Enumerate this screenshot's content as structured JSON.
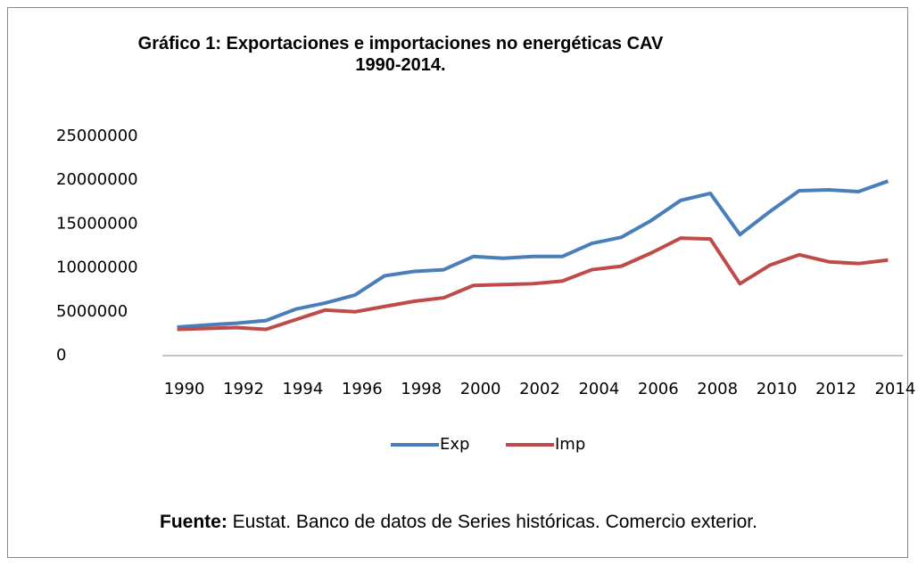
{
  "chart_data": {
    "type": "line",
    "title": "Gráfico 1: Exportaciones e importaciones no energéticas CAV 1990-2014.",
    "x": [
      1990,
      1991,
      1992,
      1993,
      1994,
      1995,
      1996,
      1997,
      1998,
      1999,
      2000,
      2001,
      2002,
      2003,
      2004,
      2005,
      2006,
      2007,
      2008,
      2009,
      2010,
      2011,
      2012,
      2013,
      2014
    ],
    "xlim": [
      1989.5,
      2014.5
    ],
    "xticks": [
      1990,
      1992,
      1994,
      1996,
      1998,
      2000,
      2002,
      2004,
      2006,
      2008,
      2010,
      2012,
      2014
    ],
    "ylim": [
      0,
      25000000
    ],
    "yticks": [
      0,
      5000000,
      10000000,
      15000000,
      20000000,
      25000000
    ],
    "grid": false,
    "legend": "bottom",
    "series": [
      {
        "name": "Exp",
        "color": "#4a7ebb",
        "values": [
          3250000,
          3500000,
          3700000,
          4000000,
          5300000,
          6000000,
          6900000,
          9100000,
          9600000,
          9800000,
          11300000,
          11100000,
          11300000,
          11300000,
          12800000,
          13500000,
          15400000,
          17700000,
          18500000,
          13800000,
          16400000,
          18800000,
          18900000,
          18700000,
          19900000
        ]
      },
      {
        "name": "Imp",
        "color": "#be4b48",
        "values": [
          3000000,
          3100000,
          3200000,
          3000000,
          4100000,
          5200000,
          5000000,
          5600000,
          6200000,
          6600000,
          8000000,
          8100000,
          8200000,
          8500000,
          9800000,
          10200000,
          11700000,
          13400000,
          13300000,
          8200000,
          10300000,
          11500000,
          10700000,
          10500000,
          10900000
        ]
      }
    ],
    "source": {
      "label": "Fuente:",
      "text": " Eustat. Banco de datos de Series históricas. Comercio exterior."
    }
  }
}
